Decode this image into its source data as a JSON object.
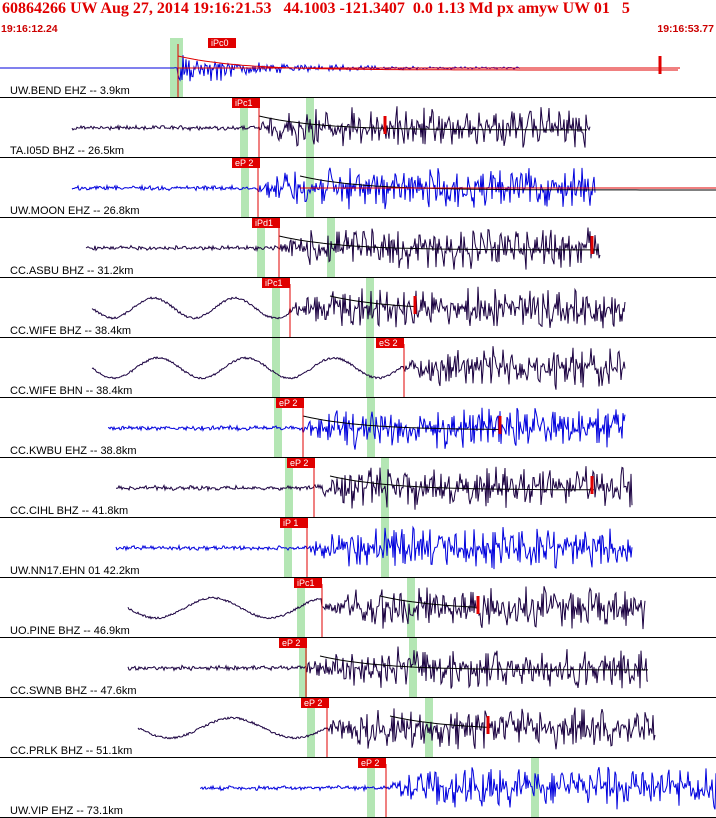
{
  "header": {
    "title": "60864266 UW Aug 27, 2014 19:16:21.53   44.1003 -121.3407  0.0 1.13 Md px amyw UW 01   5",
    "time_start": "19:16:12.24",
    "time_end": "19:16:53.77"
  },
  "colors": {
    "header_text": "#e00000",
    "pick_red": "#e00000",
    "window_green": "#b4e6b4",
    "trace_blue": "#0000dd",
    "trace_dark": "#1a0040",
    "divider": "#000000"
  },
  "traces": [
    {
      "label": "UW.BEND EHZ -- 3.9km",
      "pick": "iPc0",
      "color": "blue"
    },
    {
      "label": "TA.I05D BHZ -- 26.5km",
      "pick": "iPc1",
      "color": "dark"
    },
    {
      "label": "UW.MOON EHZ -- 26.8km",
      "pick": "eP 2",
      "color": "blue"
    },
    {
      "label": "CC.ASBU BHZ -- 31.2km",
      "pick": "iPd1",
      "color": "dark"
    },
    {
      "label": "CC.WIFE BHZ -- 38.4km",
      "pick": "iPc1",
      "color": "dark"
    },
    {
      "label": "CC.WIFE BHN -- 38.4km",
      "pick": "eS 2",
      "color": "dark"
    },
    {
      "label": "CC.KWBU EHZ -- 38.8km",
      "pick": "eP 2",
      "color": "blue"
    },
    {
      "label": "CC.CIHL BHZ -- 41.8km",
      "pick": "eP 2",
      "color": "dark"
    },
    {
      "label": "UW.NN17.EHN 01 42.2km",
      "pick": "iP 1",
      "color": "blue"
    },
    {
      "label": "UO.PINE BHZ -- 46.9km",
      "pick": "iPc1",
      "color": "dark"
    },
    {
      "label": "CC.SWNB BHZ -- 47.6km",
      "pick": "eP 2",
      "color": "dark"
    },
    {
      "label": "CC.PRLK BHZ -- 51.1km",
      "pick": "eP 2",
      "color": "dark"
    },
    {
      "label": "UW.VIP EHZ -- 73.1km",
      "pick": "eP 2",
      "color": "blue"
    }
  ]
}
